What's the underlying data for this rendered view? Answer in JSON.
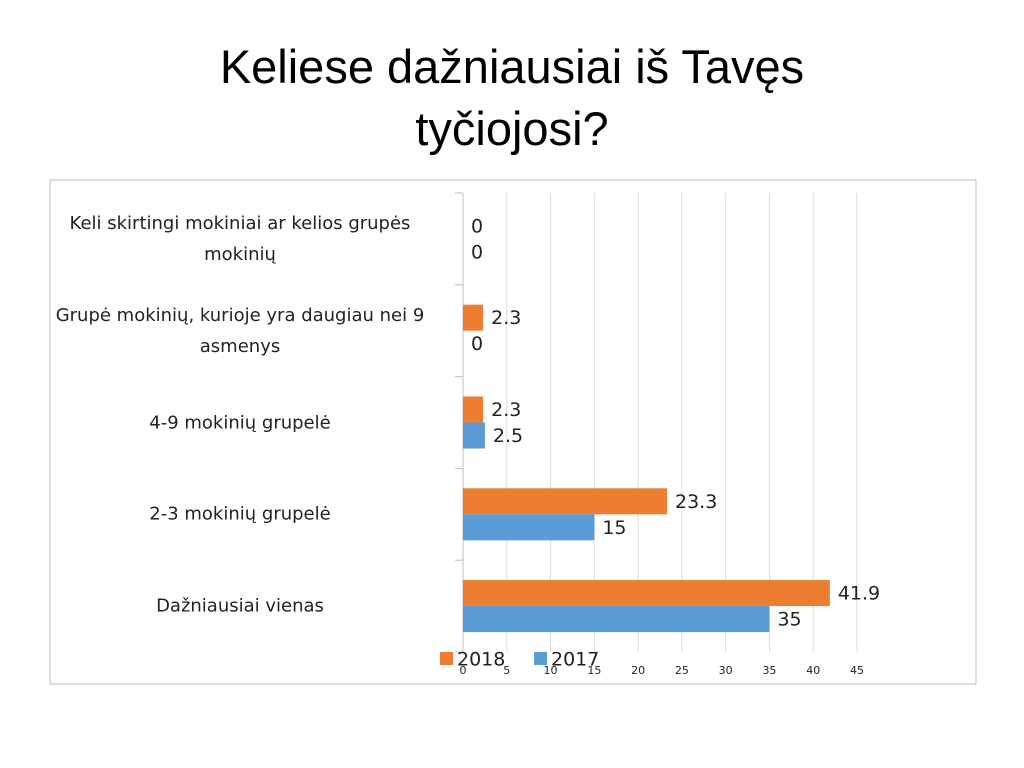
{
  "chart_data": {
    "type": "hbar",
    "title": "Keliese dažniausiai iš Tavęs tyčiojosi?",
    "categories": [
      "Keli skirtingi mokiniai ar kelios grupės mokinių",
      "Grupė mokinių, kurioje yra daugiau nei 9 asmenys",
      "4-9 mokinių grupelė",
      "2-3 mokinių grupelė",
      "Dažniausiai vienas"
    ],
    "series": [
      {
        "name": "2018",
        "color": "#ed7d31",
        "values": [
          0,
          2.3,
          2.3,
          23.3,
          41.9
        ]
      },
      {
        "name": "2017",
        "color": "#5b9bd5",
        "values": [
          0,
          0,
          2.5,
          15,
          35
        ]
      }
    ],
    "xlim": [
      0,
      45
    ],
    "xticks": [
      0,
      5,
      10,
      15,
      20,
      25,
      30,
      35,
      40,
      45
    ],
    "grid": true
  }
}
